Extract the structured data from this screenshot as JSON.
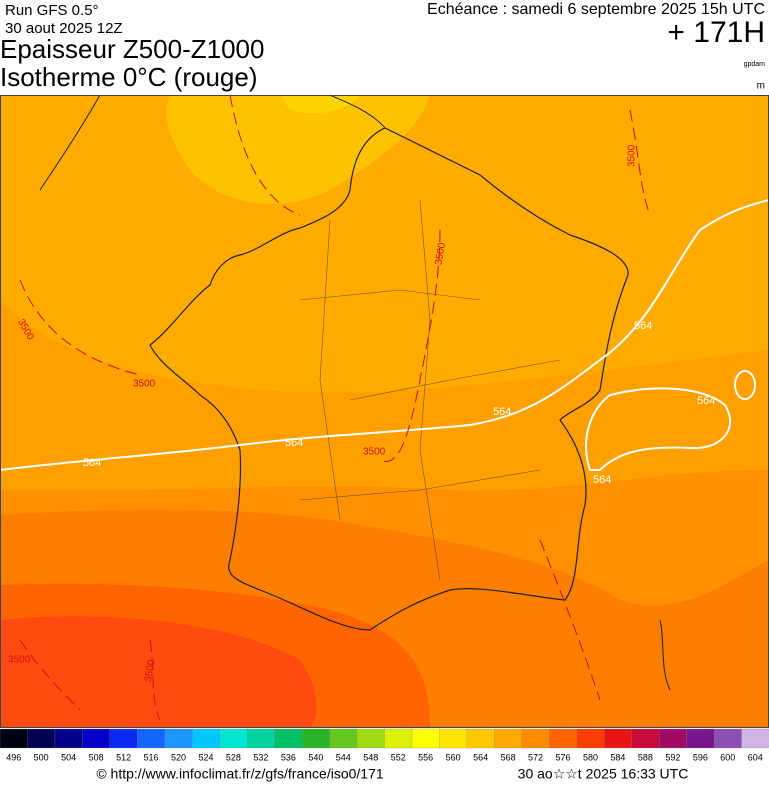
{
  "header": {
    "run": "Run GFS 0.5°",
    "run_date": "30 aout 2025 12Z",
    "valid": "Echéance : samedi 6 septembre 2025 15h UTC",
    "lead": "+ 171H",
    "title_line1": "Epaisseur Z500-Z1000",
    "title_line2": "Isotherme 0°C (rouge)",
    "unit1": "gpdam",
    "unit2": "m"
  },
  "map": {
    "thickness_labels": [
      "564",
      "564",
      "564",
      "564",
      "564",
      "564"
    ],
    "isotherm_labels": [
      "3500",
      "3500",
      "3500",
      "3500",
      "3500",
      "3500",
      "3500"
    ]
  },
  "colorbar": {
    "levels": [
      496,
      500,
      504,
      508,
      512,
      516,
      520,
      524,
      528,
      532,
      536,
      540,
      544,
      548,
      552,
      556,
      560,
      564,
      568,
      572,
      576,
      580,
      584,
      588,
      592,
      596,
      600,
      604
    ],
    "colors": [
      "#000014",
      "#000050",
      "#00008c",
      "#0000c8",
      "#0a28f0",
      "#1464ff",
      "#1e96ff",
      "#00c8ff",
      "#00e6d2",
      "#00d2a0",
      "#00be64",
      "#28b428",
      "#64c81e",
      "#a0dc14",
      "#dcf00a",
      "#ffff00",
      "#ffe600",
      "#ffc800",
      "#ffaa00",
      "#ff8c00",
      "#ff6400",
      "#ff3c00",
      "#e61414",
      "#c80a3c",
      "#a00a64",
      "#78148c",
      "#8c50b4",
      "#d2b4e6"
    ]
  },
  "footer": {
    "url": "© http://www.infoclimat.fr/z/gfs/france/iso0/171",
    "timestamp": "30 ao☆☆t 2025 16:33 UTC"
  }
}
